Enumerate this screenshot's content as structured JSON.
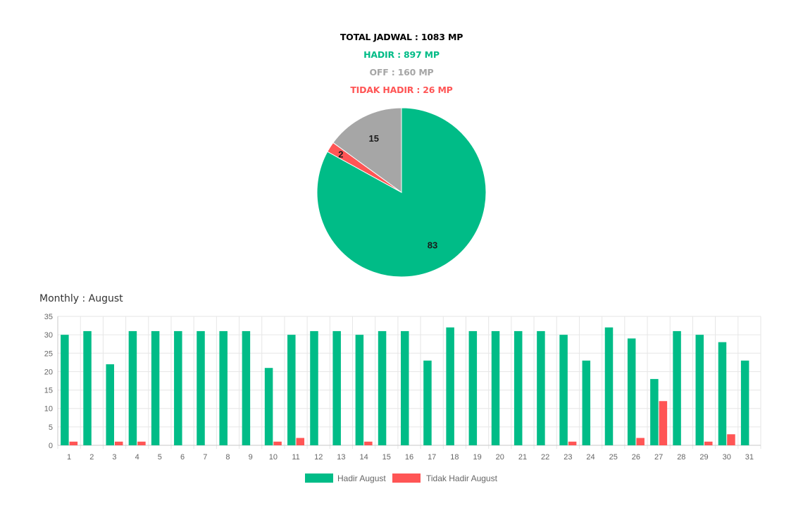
{
  "summary": {
    "total": "TOTAL JADWAL : 1083 MP",
    "hadir": "HADIR : 897 MP",
    "off": "OFF : 160 MP",
    "tidak_hadir": "TIDAK HADIR : 26 MP"
  },
  "colors": {
    "total": "#000000",
    "hadir": "#00bc87",
    "off": "#a6a6a6",
    "tidak_hadir": "#ff5555",
    "grid": "#e6e6e6",
    "axis_text": "#666666"
  },
  "chart_data": [
    {
      "type": "pie",
      "slices": [
        {
          "label": "83",
          "value": 83,
          "color": "#00bc87"
        },
        {
          "label": "2",
          "value": 2,
          "color": "#ff5555"
        },
        {
          "label": "15",
          "value": 15,
          "color": "#a6a6a6"
        }
      ]
    },
    {
      "type": "bar",
      "title": "Monthly : August",
      "categories": [
        "1",
        "2",
        "3",
        "4",
        "5",
        "6",
        "7",
        "8",
        "9",
        "10",
        "11",
        "12",
        "13",
        "14",
        "15",
        "16",
        "17",
        "18",
        "19",
        "20",
        "21",
        "22",
        "23",
        "24",
        "25",
        "26",
        "27",
        "28",
        "29",
        "30",
        "31"
      ],
      "series": [
        {
          "name": "Hadir August",
          "color": "#00bc87",
          "values": [
            30,
            31,
            22,
            31,
            31,
            31,
            31,
            31,
            31,
            21,
            30,
            31,
            31,
            30,
            31,
            31,
            23,
            32,
            31,
            31,
            31,
            31,
            30,
            23,
            32,
            29,
            18,
            31,
            30,
            28,
            23
          ]
        },
        {
          "name": "Tidak Hadir August",
          "color": "#ff5555",
          "values": [
            1,
            0,
            1,
            1,
            0,
            0,
            0,
            0,
            0,
            1,
            2,
            0,
            0,
            1,
            0,
            0,
            0,
            0,
            0,
            0,
            0,
            0,
            1,
            0,
            0,
            2,
            12,
            0,
            1,
            3,
            0
          ]
        }
      ],
      "ylim": [
        0,
        35
      ],
      "yticks": [
        0,
        5,
        10,
        15,
        20,
        25,
        30,
        35
      ],
      "grid": true,
      "legend": "bottom"
    }
  ]
}
